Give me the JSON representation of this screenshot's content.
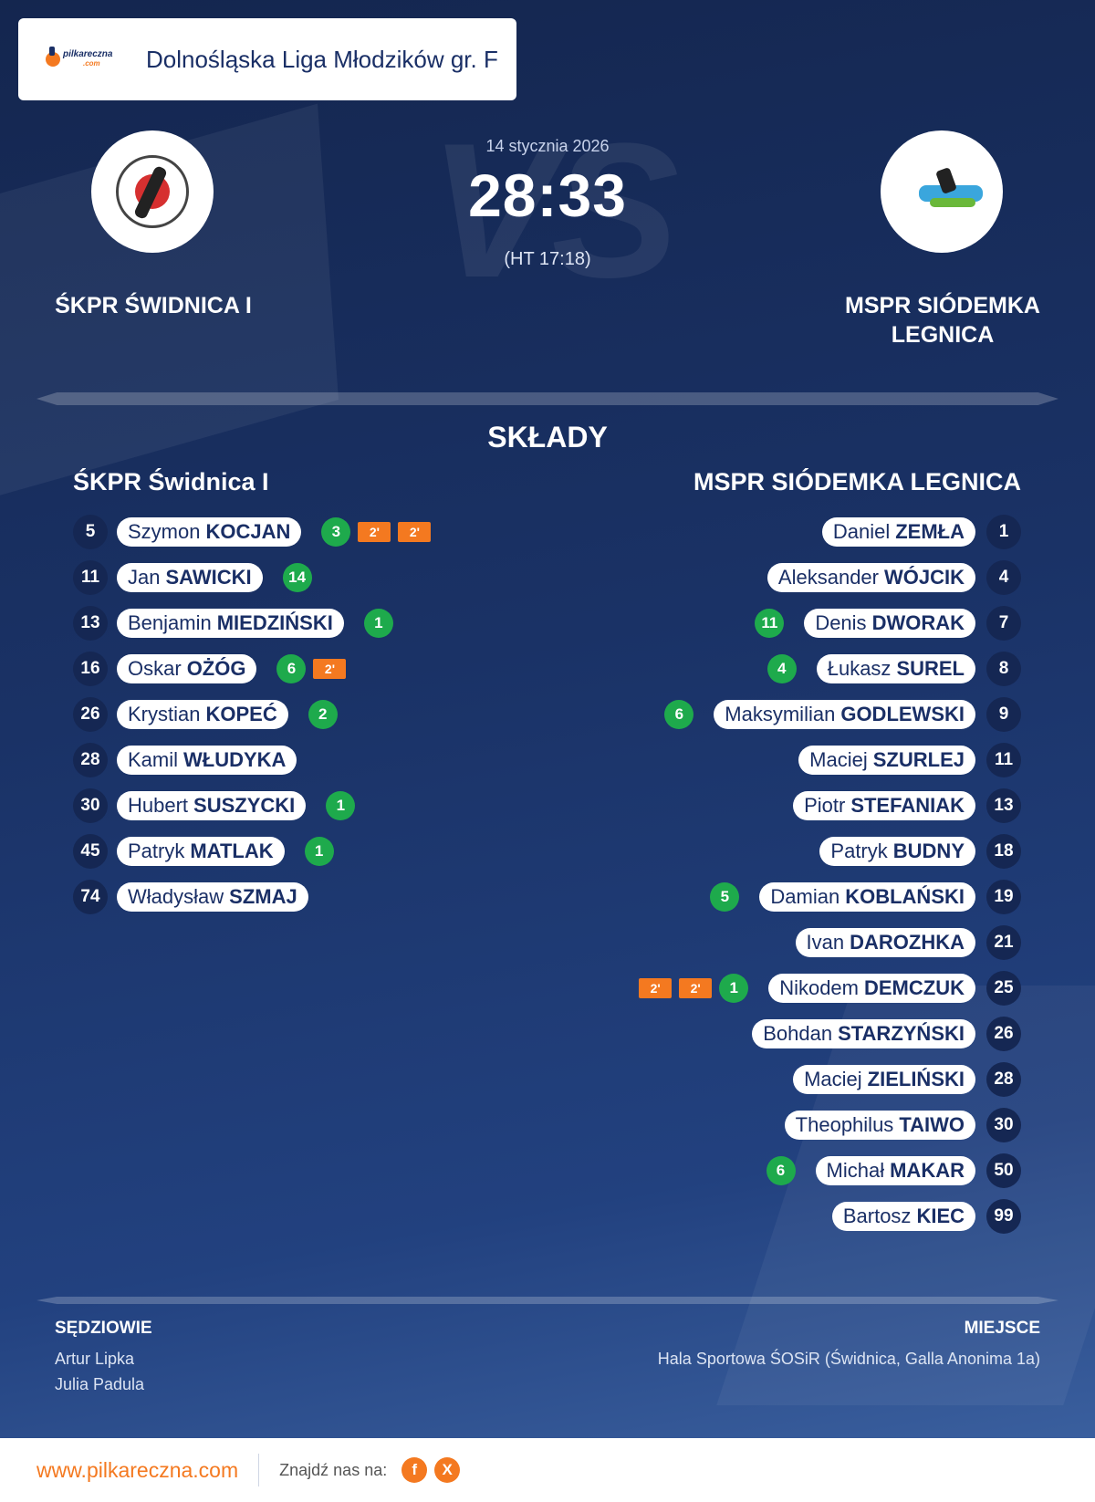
{
  "header": {
    "league": "Dolnośląska Liga Młodzików gr. F",
    "brand_line1": "pilkareczna",
    "brand_line2": ".com"
  },
  "match": {
    "date": "14 stycznia 2026",
    "score": "28:33",
    "halftime": "(HT 17:18)",
    "home_name": "ŚKPR ŚWIDNICA I",
    "away_name": "MSPR SIÓDEMKA LEGNICA",
    "vs": "VS"
  },
  "lineups": {
    "title": "SKŁADY",
    "home_title": "ŚKPR Świdnica I",
    "away_title": "MSPR SIÓDEMKA LEGNICA",
    "penalty_label": "2'",
    "home": [
      {
        "num": "5",
        "first": "Szymon",
        "last": "KOCJAN",
        "goals": "3",
        "penalties": 2
      },
      {
        "num": "11",
        "first": "Jan",
        "last": "SAWICKI",
        "goals": "14",
        "penalties": 0
      },
      {
        "num": "13",
        "first": "Benjamin",
        "last": "MIEDZIŃSKI",
        "goals": "1",
        "penalties": 0
      },
      {
        "num": "16",
        "first": "Oskar",
        "last": "OŻÓG",
        "goals": "6",
        "penalties": 1
      },
      {
        "num": "26",
        "first": "Krystian",
        "last": "KOPEĆ",
        "goals": "2",
        "penalties": 0
      },
      {
        "num": "28",
        "first": "Kamil",
        "last": "WŁUDYKA",
        "goals": "",
        "penalties": 0
      },
      {
        "num": "30",
        "first": "Hubert",
        "last": "SUSZYCKI",
        "goals": "1",
        "penalties": 0
      },
      {
        "num": "45",
        "first": "Patryk",
        "last": "MATLAK",
        "goals": "1",
        "penalties": 0
      },
      {
        "num": "74",
        "first": "Władysław",
        "last": "SZMAJ",
        "goals": "",
        "penalties": 0
      }
    ],
    "away": [
      {
        "num": "1",
        "first": "Daniel",
        "last": "ZEMŁA",
        "goals": "",
        "penalties": 0
      },
      {
        "num": "4",
        "first": "Aleksander",
        "last": "WÓJCIK",
        "goals": "",
        "penalties": 0
      },
      {
        "num": "7",
        "first": "Denis",
        "last": "DWORAK",
        "goals": "11",
        "penalties": 0
      },
      {
        "num": "8",
        "first": "Łukasz",
        "last": "SUREL",
        "goals": "4",
        "penalties": 0
      },
      {
        "num": "9",
        "first": "Maksymilian",
        "last": "GODLEWSKI",
        "goals": "6",
        "penalties": 0
      },
      {
        "num": "11",
        "first": "Maciej",
        "last": "SZURLEJ",
        "goals": "",
        "penalties": 0
      },
      {
        "num": "13",
        "first": "Piotr",
        "last": "STEFANIAK",
        "goals": "",
        "penalties": 0
      },
      {
        "num": "18",
        "first": "Patryk",
        "last": "BUDNY",
        "goals": "",
        "penalties": 0
      },
      {
        "num": "19",
        "first": "Damian",
        "last": "KOBLAŃSKI",
        "goals": "5",
        "penalties": 0
      },
      {
        "num": "21",
        "first": "Ivan",
        "last": "DAROZHKA",
        "goals": "",
        "penalties": 0
      },
      {
        "num": "25",
        "first": "Nikodem",
        "last": "DEMCZUK",
        "goals": "1",
        "penalties": 2
      },
      {
        "num": "26",
        "first": "Bohdan",
        "last": "STARZYŃSKI",
        "goals": "",
        "penalties": 0
      },
      {
        "num": "28",
        "first": "Maciej",
        "last": "ZIELIŃSKI",
        "goals": "",
        "penalties": 0
      },
      {
        "num": "30",
        "first": "Theophilus",
        "last": "TAIWO",
        "goals": "",
        "penalties": 0
      },
      {
        "num": "50",
        "first": "Michał",
        "last": "MAKAR",
        "goals": "6",
        "penalties": 0
      },
      {
        "num": "99",
        "first": "Bartosz",
        "last": "KIEC",
        "goals": "",
        "penalties": 0
      }
    ]
  },
  "officials": {
    "label": "SĘDZIOWIE",
    "names": [
      "Artur Lipka",
      "Julia Padula"
    ]
  },
  "venue": {
    "label": "MIEJSCE",
    "value": "Hala Sportowa ŚOSiR (Świdnica, Galla Anonima 1a)"
  },
  "footer": {
    "site": "www.pilkareczna.com",
    "find_us": "Znajdź nas na:",
    "facebook": "f",
    "x": "X"
  },
  "colors": {
    "accent": "#f47920",
    "goal": "#1eaa4c",
    "navy": "#1a2f66"
  }
}
